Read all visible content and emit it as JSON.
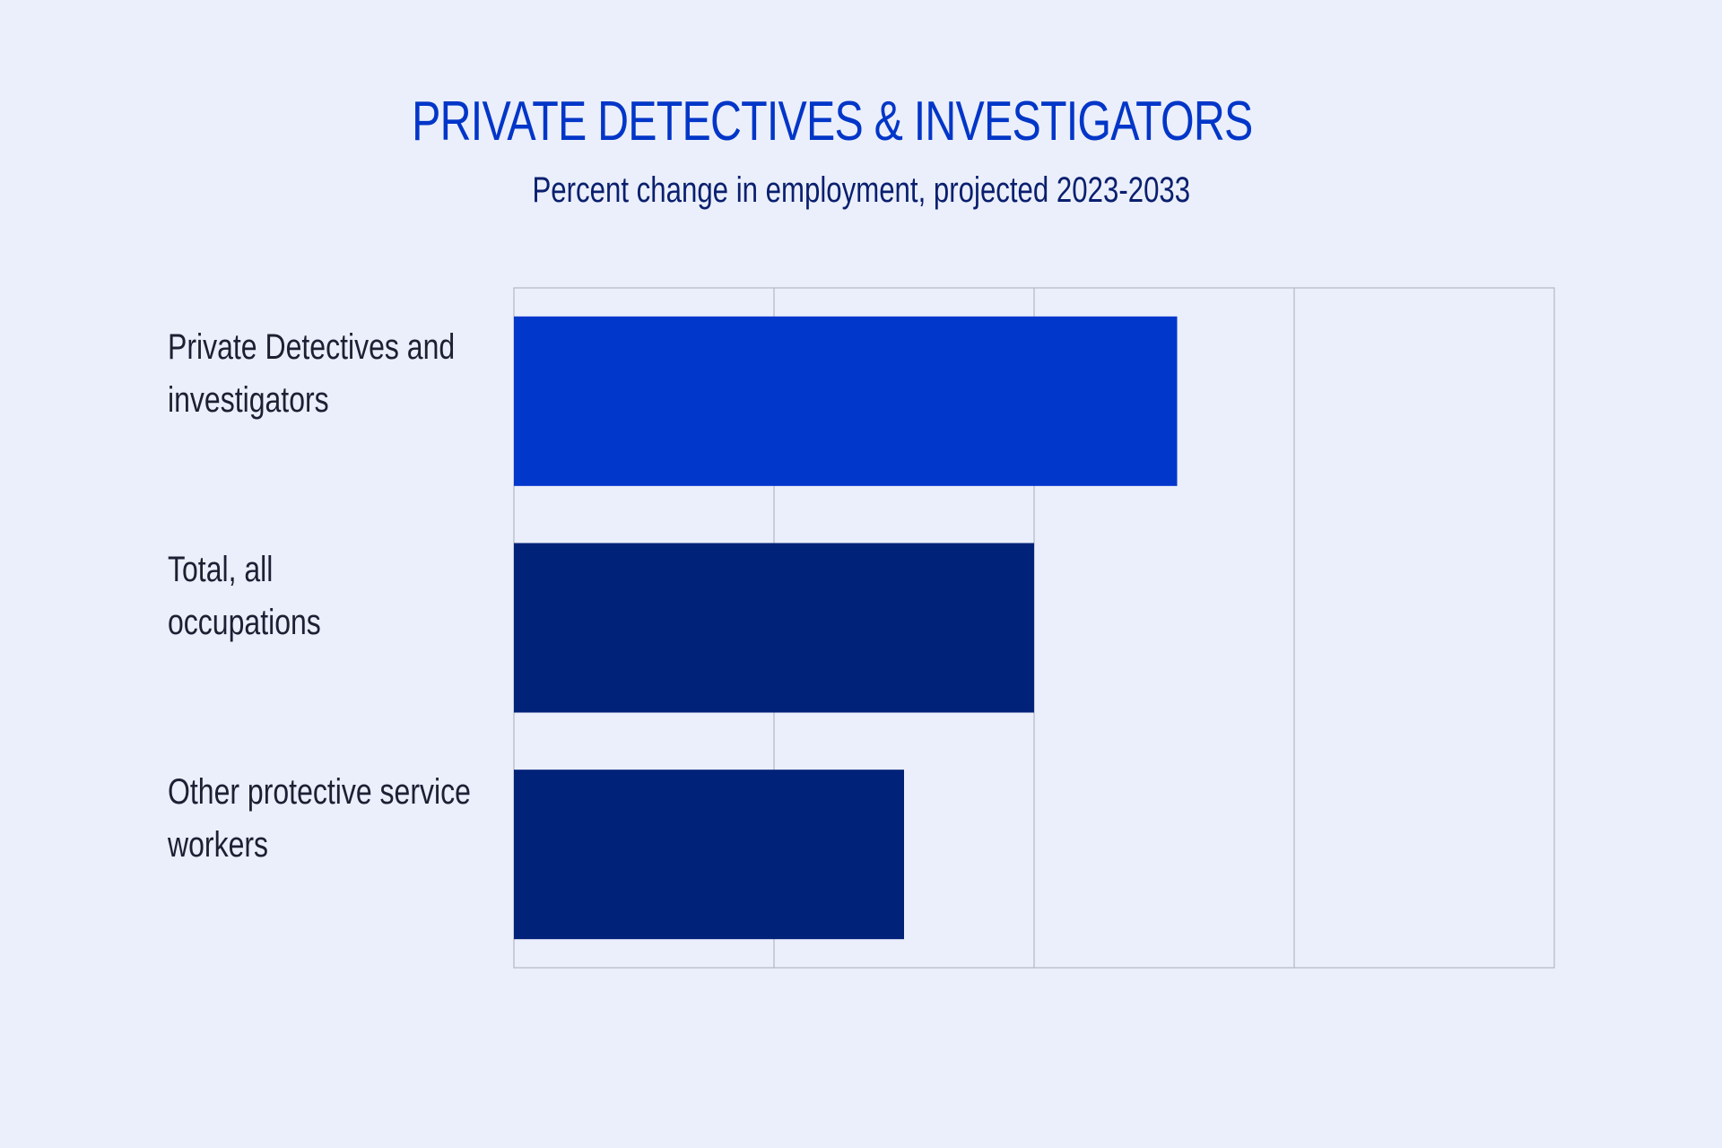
{
  "chart_data": {
    "type": "bar",
    "orientation": "horizontal",
    "title": "PRIVATE DETECTIVES & INVESTIGATORS",
    "subtitle": "Percent change in employment, projected 2023-2033",
    "categories": [
      "Private Detectives and investigators",
      "Total, all occupations",
      "Other protective service workers"
    ],
    "category_lines": [
      [
        "Private Detectives and",
        "investigators"
      ],
      [
        "Total, all",
        "occupations"
      ],
      [
        "Other protective service",
        "workers"
      ]
    ],
    "values": [
      5.1,
      4,
      3
    ],
    "colors": [
      "#0237cc",
      "#012279",
      "#012279"
    ],
    "xlim": [
      0,
      8
    ],
    "grid_ticks": [
      0,
      2,
      4,
      6,
      8
    ],
    "grid": true,
    "xlabel": "",
    "ylabel": ""
  }
}
